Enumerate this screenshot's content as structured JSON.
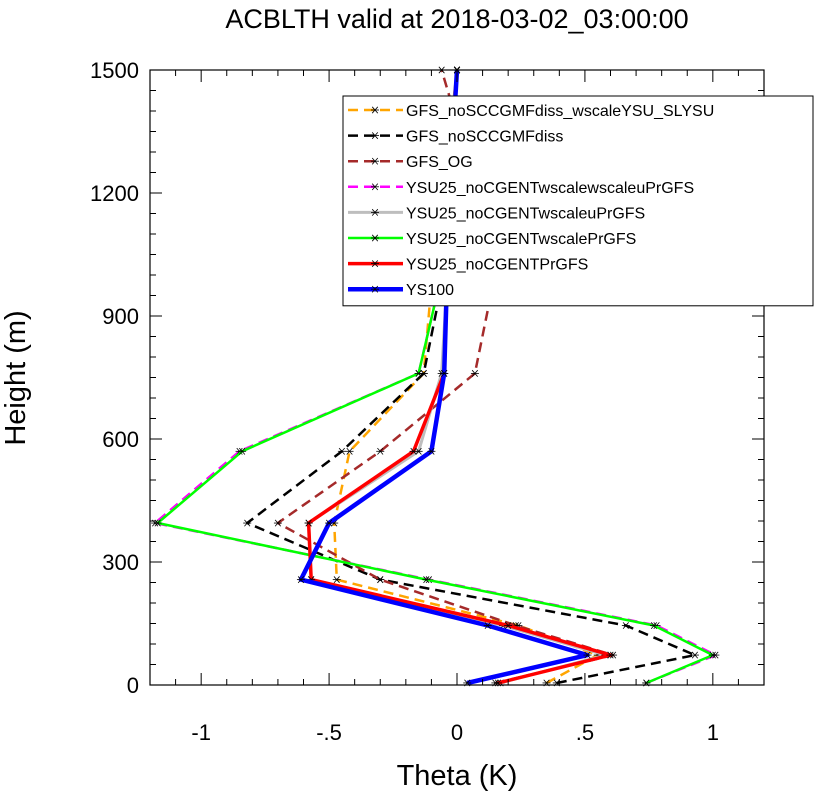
{
  "chart_data": {
    "type": "line",
    "title": "ACBLTH valid at 2018-03-02_03:00:00",
    "xlabel": "Theta (K)",
    "ylabel": "Height (m)",
    "xlim": [
      -1.2,
      1.2
    ],
    "ylim": [
      0,
      1500
    ],
    "xticks": [
      -1,
      -0.5,
      0,
      0.5,
      1
    ],
    "xtick_labels": [
      "-1",
      "-.5",
      "0",
      ".5",
      "1"
    ],
    "yticks": [
      0,
      300,
      600,
      900,
      1200,
      1500
    ],
    "ytick_labels": [
      "0",
      "300",
      "600",
      "900",
      "1200",
      "1500"
    ],
    "legend_position": "upper-right",
    "series": [
      {
        "name": "GFS_noSCCGMFdiss_wscaleYSU_SLYSU",
        "color": "#ffa500",
        "dash": "dashed",
        "width": 2.5,
        "x": [
          0.35,
          0.55,
          0.24,
          -0.47,
          -0.48,
          -0.42,
          -0.13,
          -0.1,
          -0.05,
          -0.02,
          0
        ],
        "y": [
          5,
          73,
          145,
          257,
          395,
          570,
          760,
          975,
          1235,
          1395,
          1500
        ]
      },
      {
        "name": "GFS_noSCCGMFdiss",
        "color": "#000000",
        "dash": "dashed",
        "width": 2.5,
        "x": [
          0.39,
          0.93,
          0.66,
          -0.3,
          -0.82,
          -0.45,
          -0.13,
          -0.06,
          -0.03,
          -0.01,
          0
        ],
        "y": [
          5,
          73,
          145,
          257,
          395,
          570,
          760,
          975,
          1235,
          1395,
          1500
        ]
      },
      {
        "name": "GFS_OG",
        "color": "#a52a2a",
        "dash": "dashed",
        "width": 2.5,
        "x": [
          0.15,
          0.61,
          0.23,
          -0.3,
          -0.7,
          -0.3,
          0.07,
          0.14,
          0.02,
          -0.01,
          -0.06
        ],
        "y": [
          5,
          73,
          145,
          257,
          395,
          570,
          760,
          975,
          1235,
          1395,
          1500
        ]
      },
      {
        "name": "YSU25_noCGENTwscalewscaleuPrGFS",
        "color": "#ff00ff",
        "dash": "dashed",
        "width": 2.5,
        "x": [
          0.74,
          1.01,
          0.78,
          -0.11,
          -1.18,
          -0.85,
          -0.15,
          -0.07,
          -0.03,
          -0.01,
          0
        ],
        "y": [
          5,
          73,
          145,
          257,
          395,
          570,
          760,
          975,
          1235,
          1395,
          1500
        ]
      },
      {
        "name": "YSU25_noCGENTwscaleuPrGFS",
        "color": "#bebebe",
        "dash": "solid",
        "width": 3,
        "x": [
          0.17,
          0.58,
          0.18,
          -0.57,
          -0.58,
          -0.15,
          -0.06,
          -0.04,
          -0.02,
          -0.01,
          0
        ],
        "y": [
          5,
          73,
          145,
          257,
          395,
          570,
          760,
          975,
          1235,
          1395,
          1500
        ]
      },
      {
        "name": "YSU25_noCGENTwscalePrGFS",
        "color": "#00ff00",
        "dash": "solid",
        "width": 2.5,
        "x": [
          0.74,
          1.0,
          0.77,
          -0.12,
          -1.17,
          -0.84,
          -0.15,
          -0.07,
          -0.03,
          -0.01,
          0
        ],
        "y": [
          5,
          73,
          145,
          257,
          395,
          570,
          760,
          975,
          1235,
          1395,
          1500
        ]
      },
      {
        "name": "YSU25_noCGENTPrGFS",
        "color": "#ff0000",
        "dash": "solid",
        "width": 3.5,
        "x": [
          0.16,
          0.6,
          0.2,
          -0.57,
          -0.58,
          -0.17,
          -0.05,
          -0.04,
          -0.02,
          -0.01,
          0
        ],
        "y": [
          5,
          73,
          145,
          257,
          395,
          570,
          760,
          975,
          1235,
          1395,
          1500
        ]
      },
      {
        "name": "YS100",
        "color": "#0000ff",
        "dash": "solid",
        "width": 4.5,
        "x": [
          0.04,
          0.51,
          0.12,
          -0.61,
          -0.5,
          -0.1,
          -0.05,
          -0.04,
          -0.02,
          -0.01,
          0
        ],
        "y": [
          5,
          73,
          145,
          257,
          395,
          570,
          760,
          975,
          1235,
          1395,
          1500
        ]
      }
    ]
  }
}
